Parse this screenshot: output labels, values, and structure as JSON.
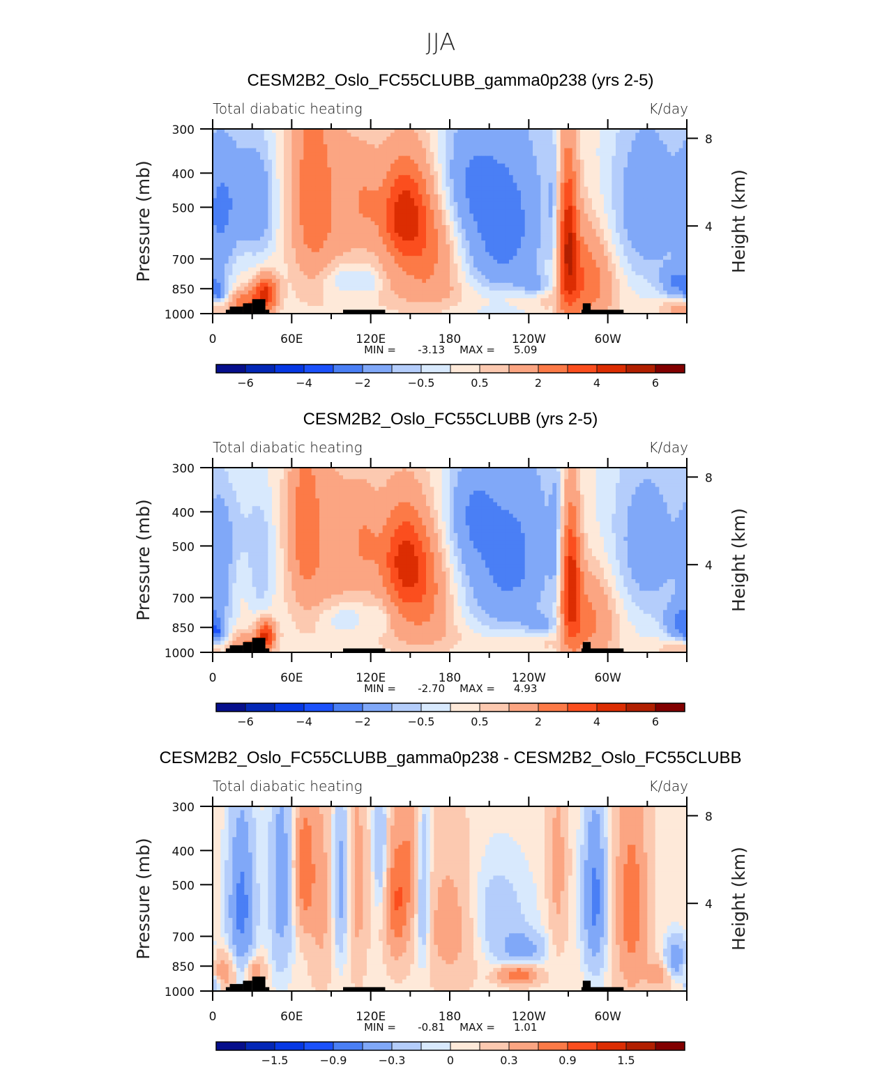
{
  "figure": {
    "season_title": "JJA"
  },
  "chart_data": [
    {
      "type": "heatmap",
      "title": "CESM2B2_Oslo_FC55CLUBB_gamma0p238 (yrs 2-5)",
      "left_string": "Total diabatic heating",
      "right_string": "K/day",
      "xlabel": "",
      "ylabel": "Pressure (mb)",
      "y2label": "Height (km)",
      "x_ticks": [
        0,
        60,
        120,
        180,
        240,
        300
      ],
      "x_tick_labels": [
        "0",
        "60E",
        "120E",
        "180",
        "120W",
        "60W"
      ],
      "x_range": [
        0,
        360
      ],
      "y_ticks": [
        300,
        400,
        500,
        700,
        850,
        1000
      ],
      "y_tick_labels": [
        "300",
        "400",
        "500",
        "700",
        "850",
        "1000"
      ],
      "y_range": [
        1000,
        300
      ],
      "y2_ticks": [
        8,
        4
      ],
      "y2_tick_labels": [
        "8",
        "4"
      ],
      "min_label": "MIN =",
      "min_value": "-3.13",
      "max_label": "MAX =",
      "max_value": "5.09",
      "levels": [
        -6,
        -5,
        -4,
        -3,
        -2,
        -1,
        -0.5,
        0,
        0.5,
        1,
        2,
        3,
        4,
        5,
        6
      ],
      "colorbar_labels": [
        "-6",
        "-4",
        "-2",
        "-0.5",
        "0.5",
        "2",
        "4",
        "6"
      ],
      "colorbar_label_levels": [
        -6,
        -4,
        -2,
        -0.5,
        0.5,
        2,
        4,
        6
      ],
      "background_value": 0.3,
      "features": [
        {
          "lon": 20,
          "p": 470,
          "slon": 14,
          "sp": 140,
          "amp": -1.6
        },
        {
          "lon": 5,
          "p": 600,
          "slon": 8,
          "sp": 220,
          "amp": -1.2
        },
        {
          "lon": 37,
          "p": 500,
          "slon": 8,
          "sp": 140,
          "amp": -1.2
        },
        {
          "lon": 40,
          "p": 880,
          "slon": 6,
          "sp": 70,
          "amp": 4.2
        },
        {
          "lon": 25,
          "p": 940,
          "slon": 8,
          "sp": 60,
          "amp": 2.5
        },
        {
          "lon": 4,
          "p": 870,
          "slon": 4,
          "sp": 40,
          "amp": -2.2
        },
        {
          "lon": 75,
          "p": 450,
          "slon": 10,
          "sp": 220,
          "amp": 1.8
        },
        {
          "lon": 90,
          "p": 500,
          "slon": 18,
          "sp": 200,
          "amp": 1.2
        },
        {
          "lon": 115,
          "p": 480,
          "slon": 8,
          "sp": 100,
          "amp": 1.1
        },
        {
          "lon": 100,
          "p": 800,
          "slon": 12,
          "sp": 60,
          "amp": -1.0
        },
        {
          "lon": 120,
          "p": 820,
          "slon": 6,
          "sp": 50,
          "amp": -0.8
        },
        {
          "lon": 145,
          "p": 520,
          "slon": 13,
          "sp": 120,
          "amp": 3.8
        },
        {
          "lon": 165,
          "p": 650,
          "slon": 18,
          "sp": 160,
          "amp": 2.0
        },
        {
          "lon": 160,
          "p": 850,
          "slon": 30,
          "sp": 80,
          "amp": 0.6
        },
        {
          "lon": 220,
          "p": 560,
          "slon": 26,
          "sp": 260,
          "amp": -2.8
        },
        {
          "lon": 190,
          "p": 420,
          "slon": 14,
          "sp": 120,
          "amp": -1.2
        },
        {
          "lon": 245,
          "p": 830,
          "slon": 8,
          "sp": 40,
          "amp": -1.4
        },
        {
          "lon": 232,
          "p": 900,
          "slon": 30,
          "sp": 60,
          "amp": 0.8
        },
        {
          "lon": 270,
          "p": 600,
          "slon": 5,
          "sp": 220,
          "amp": 4.0
        },
        {
          "lon": 276,
          "p": 780,
          "slon": 14,
          "sp": 200,
          "amp": 1.8
        },
        {
          "lon": 290,
          "p": 800,
          "slon": 14,
          "sp": 160,
          "amp": 1.2
        },
        {
          "lon": 258,
          "p": 600,
          "slon": 3,
          "sp": 300,
          "amp": -0.8
        },
        {
          "lon": 330,
          "p": 500,
          "slon": 22,
          "sp": 220,
          "amp": -2.0
        },
        {
          "lon": 352,
          "p": 820,
          "slon": 8,
          "sp": 60,
          "amp": -2.0
        },
        {
          "lon": 355,
          "p": 960,
          "slon": 10,
          "sp": 40,
          "amp": 1.4
        }
      ],
      "topography": [
        {
          "lon_start": 10,
          "lon_end": 13,
          "p_top": 975
        },
        {
          "lon_start": 13,
          "lon_end": 23,
          "p_top": 955
        },
        {
          "lon_start": 23,
          "lon_end": 30,
          "p_top": 935
        },
        {
          "lon_start": 30,
          "lon_end": 40,
          "p_top": 910
        },
        {
          "lon_start": 40,
          "lon_end": 43,
          "p_top": 975
        },
        {
          "lon_start": 99,
          "lon_end": 131,
          "p_top": 975
        },
        {
          "lon_start": 280,
          "lon_end": 312,
          "p_top": 975
        },
        {
          "lon_start": 281,
          "lon_end": 287,
          "p_top": 935
        }
      ]
    },
    {
      "type": "heatmap",
      "title": "CESM2B2_Oslo_FC55CLUBB (yrs 2-5)",
      "left_string": "Total diabatic heating",
      "right_string": "K/day",
      "xlabel": "",
      "ylabel": "Pressure (mb)",
      "y2label": "Height (km)",
      "x_ticks": [
        0,
        60,
        120,
        180,
        240,
        300
      ],
      "x_tick_labels": [
        "0",
        "60E",
        "120E",
        "180",
        "120W",
        "60W"
      ],
      "x_range": [
        0,
        360
      ],
      "y_ticks": [
        300,
        400,
        500,
        700,
        850,
        1000
      ],
      "y_tick_labels": [
        "300",
        "400",
        "500",
        "700",
        "850",
        "1000"
      ],
      "y_range": [
        1000,
        300
      ],
      "y2_ticks": [
        8,
        4
      ],
      "y2_tick_labels": [
        "8",
        "4"
      ],
      "min_label": "MIN =",
      "min_value": "-2.70",
      "max_label": "MAX =",
      "max_value": "4.93",
      "levels": [
        -6,
        -5,
        -4,
        -3,
        -2,
        -1,
        -0.5,
        0,
        0.5,
        1,
        2,
        3,
        4,
        5,
        6
      ],
      "colorbar_labels": [
        "-6",
        "-4",
        "-2",
        "-0.5",
        "0.5",
        "2",
        "4",
        "6"
      ],
      "colorbar_label_levels": [
        -6,
        -4,
        -2,
        -0.5,
        0.5,
        2,
        4,
        6
      ],
      "background_value": 0.3,
      "features": [
        {
          "lon": 20,
          "p": 440,
          "slon": 10,
          "sp": 100,
          "amp": -0.6
        },
        {
          "lon": 5,
          "p": 620,
          "slon": 8,
          "sp": 220,
          "amp": -1.5
        },
        {
          "lon": 37,
          "p": 560,
          "slon": 7,
          "sp": 160,
          "amp": -1.2
        },
        {
          "lon": 40,
          "p": 900,
          "slon": 5,
          "sp": 60,
          "amp": 4.2
        },
        {
          "lon": 25,
          "p": 950,
          "slon": 8,
          "sp": 50,
          "amp": 1.8
        },
        {
          "lon": 3,
          "p": 880,
          "slon": 4,
          "sp": 40,
          "amp": -2.0
        },
        {
          "lon": 70,
          "p": 430,
          "slon": 8,
          "sp": 180,
          "amp": 2.0
        },
        {
          "lon": 90,
          "p": 520,
          "slon": 18,
          "sp": 200,
          "amp": 1.2
        },
        {
          "lon": 115,
          "p": 480,
          "slon": 8,
          "sp": 100,
          "amp": 1.2
        },
        {
          "lon": 100,
          "p": 800,
          "slon": 12,
          "sp": 60,
          "amp": -1.0
        },
        {
          "lon": 128,
          "p": 800,
          "slon": 5,
          "sp": 60,
          "amp": -0.7
        },
        {
          "lon": 145,
          "p": 540,
          "slon": 13,
          "sp": 130,
          "amp": 3.4
        },
        {
          "lon": 160,
          "p": 680,
          "slon": 16,
          "sp": 160,
          "amp": 2.0
        },
        {
          "lon": 160,
          "p": 880,
          "slon": 30,
          "sp": 80,
          "amp": 0.4
        },
        {
          "lon": 225,
          "p": 540,
          "slon": 28,
          "sp": 260,
          "amp": -2.6
        },
        {
          "lon": 195,
          "p": 400,
          "slon": 12,
          "sp": 100,
          "amp": -1.2
        },
        {
          "lon": 250,
          "p": 840,
          "slon": 8,
          "sp": 40,
          "amp": -1.3
        },
        {
          "lon": 232,
          "p": 920,
          "slon": 30,
          "sp": 60,
          "amp": 0.6
        },
        {
          "lon": 272,
          "p": 600,
          "slon": 5,
          "sp": 200,
          "amp": 4.0
        },
        {
          "lon": 276,
          "p": 800,
          "slon": 14,
          "sp": 200,
          "amp": 1.5
        },
        {
          "lon": 292,
          "p": 780,
          "slon": 14,
          "sp": 160,
          "amp": 1.1
        },
        {
          "lon": 260,
          "p": 600,
          "slon": 3,
          "sp": 300,
          "amp": -0.8
        },
        {
          "lon": 330,
          "p": 500,
          "slon": 22,
          "sp": 220,
          "amp": -1.8
        },
        {
          "lon": 354,
          "p": 830,
          "slon": 8,
          "sp": 70,
          "amp": -2.0
        },
        {
          "lon": 355,
          "p": 970,
          "slon": 10,
          "sp": 40,
          "amp": 1.2
        }
      ],
      "topography": [
        {
          "lon_start": 10,
          "lon_end": 13,
          "p_top": 975
        },
        {
          "lon_start": 13,
          "lon_end": 23,
          "p_top": 955
        },
        {
          "lon_start": 23,
          "lon_end": 30,
          "p_top": 935
        },
        {
          "lon_start": 30,
          "lon_end": 40,
          "p_top": 910
        },
        {
          "lon_start": 40,
          "lon_end": 43,
          "p_top": 975
        },
        {
          "lon_start": 99,
          "lon_end": 131,
          "p_top": 975
        },
        {
          "lon_start": 280,
          "lon_end": 312,
          "p_top": 975
        },
        {
          "lon_start": 281,
          "lon_end": 287,
          "p_top": 935
        }
      ]
    },
    {
      "type": "heatmap",
      "title": "CESM2B2_Oslo_FC55CLUBB_gamma0p238 - CESM2B2_Oslo_FC55CLUBB",
      "left_string": "Total diabatic heating",
      "right_string": "K/day",
      "xlabel": "",
      "ylabel": "Pressure (mb)",
      "y2label": "Height (km)",
      "x_ticks": [
        0,
        60,
        120,
        180,
        240,
        300
      ],
      "x_tick_labels": [
        "0",
        "60E",
        "120E",
        "180",
        "120W",
        "60W"
      ],
      "x_range": [
        0,
        360
      ],
      "y_ticks": [
        300,
        400,
        500,
        700,
        850,
        1000
      ],
      "y_tick_labels": [
        "300",
        "400",
        "500",
        "700",
        "850",
        "1000"
      ],
      "y_range": [
        1000,
        300
      ],
      "y2_ticks": [
        8,
        4
      ],
      "y2_tick_labels": [
        "8",
        "4"
      ],
      "min_label": "MIN =",
      "min_value": "-0.81",
      "max_label": "MAX =",
      "max_value": "1.01",
      "levels": [
        -1.8,
        -1.5,
        -1.2,
        -0.9,
        -0.6,
        -0.3,
        -0.1,
        0,
        0.1,
        0.3,
        0.6,
        0.9,
        1.2,
        1.5,
        1.8
      ],
      "colorbar_labels": [
        "-1.5",
        "-0.9",
        "-0.3",
        "0",
        "0.3",
        "0.9",
        "1.5"
      ],
      "colorbar_label_levels": [
        -1.5,
        -0.9,
        -0.3,
        0,
        0.3,
        0.9,
        1.5
      ],
      "background_value": 0.05,
      "features": [
        {
          "lon": 22,
          "p": 580,
          "slon": 7,
          "sp": 220,
          "amp": -0.75
        },
        {
          "lon": 8,
          "p": 880,
          "slon": 8,
          "sp": 80,
          "amp": 0.45
        },
        {
          "lon": 32,
          "p": 880,
          "slon": 5,
          "sp": 60,
          "amp": 0.45
        },
        {
          "lon": 2,
          "p": 960,
          "slon": 3,
          "sp": 40,
          "amp": -0.5
        },
        {
          "lon": 52,
          "p": 500,
          "slon": 6,
          "sp": 250,
          "amp": -0.5
        },
        {
          "lon": 70,
          "p": 450,
          "slon": 5,
          "sp": 140,
          "amp": 0.8
        },
        {
          "lon": 82,
          "p": 550,
          "slon": 6,
          "sp": 250,
          "amp": 0.35
        },
        {
          "lon": 97,
          "p": 500,
          "slon": 4,
          "sp": 200,
          "amp": -0.45
        },
        {
          "lon": 110,
          "p": 500,
          "slon": 5,
          "sp": 250,
          "amp": 0.35
        },
        {
          "lon": 128,
          "p": 400,
          "slon": 4,
          "sp": 120,
          "amp": -0.35
        },
        {
          "lon": 140,
          "p": 560,
          "slon": 6,
          "sp": 160,
          "amp": 0.85
        },
        {
          "lon": 150,
          "p": 400,
          "slon": 5,
          "sp": 150,
          "amp": 0.4
        },
        {
          "lon": 160,
          "p": 550,
          "slon": 4,
          "sp": 200,
          "amp": -0.45
        },
        {
          "lon": 180,
          "p": 650,
          "slon": 14,
          "sp": 200,
          "amp": 0.4
        },
        {
          "lon": 215,
          "p": 600,
          "slon": 18,
          "sp": 140,
          "amp": -0.25
        },
        {
          "lon": 235,
          "p": 760,
          "slon": 12,
          "sp": 60,
          "amp": -0.45
        },
        {
          "lon": 232,
          "p": 900,
          "slon": 10,
          "sp": 40,
          "amp": 0.85
        },
        {
          "lon": 262,
          "p": 450,
          "slon": 5,
          "sp": 200,
          "amp": 0.35
        },
        {
          "lon": 290,
          "p": 550,
          "slon": 6,
          "sp": 200,
          "amp": -0.75
        },
        {
          "lon": 318,
          "p": 580,
          "slon": 8,
          "sp": 260,
          "amp": 0.75
        },
        {
          "lon": 352,
          "p": 820,
          "slon": 6,
          "sp": 80,
          "amp": -0.65
        },
        {
          "lon": 340,
          "p": 900,
          "slon": 8,
          "sp": 60,
          "amp": 0.4
        }
      ],
      "topography": [
        {
          "lon_start": 10,
          "lon_end": 13,
          "p_top": 975
        },
        {
          "lon_start": 13,
          "lon_end": 23,
          "p_top": 955
        },
        {
          "lon_start": 23,
          "lon_end": 30,
          "p_top": 935
        },
        {
          "lon_start": 30,
          "lon_end": 40,
          "p_top": 910
        },
        {
          "lon_start": 40,
          "lon_end": 43,
          "p_top": 975
        },
        {
          "lon_start": 99,
          "lon_end": 131,
          "p_top": 975
        },
        {
          "lon_start": 280,
          "lon_end": 312,
          "p_top": 975
        },
        {
          "lon_start": 281,
          "lon_end": 287,
          "p_top": 935
        }
      ]
    }
  ],
  "colormap": [
    "#060f8c",
    "#0327b6",
    "#0638e4",
    "#1b51fb",
    "#4a7ff5",
    "#80a8f8",
    "#b4cdfb",
    "#d8e9fd",
    "#fee9d9",
    "#fcc9b0",
    "#fba582",
    "#fc7a47",
    "#fb4e1e",
    "#dc2d02",
    "#b11f00",
    "#820000"
  ]
}
